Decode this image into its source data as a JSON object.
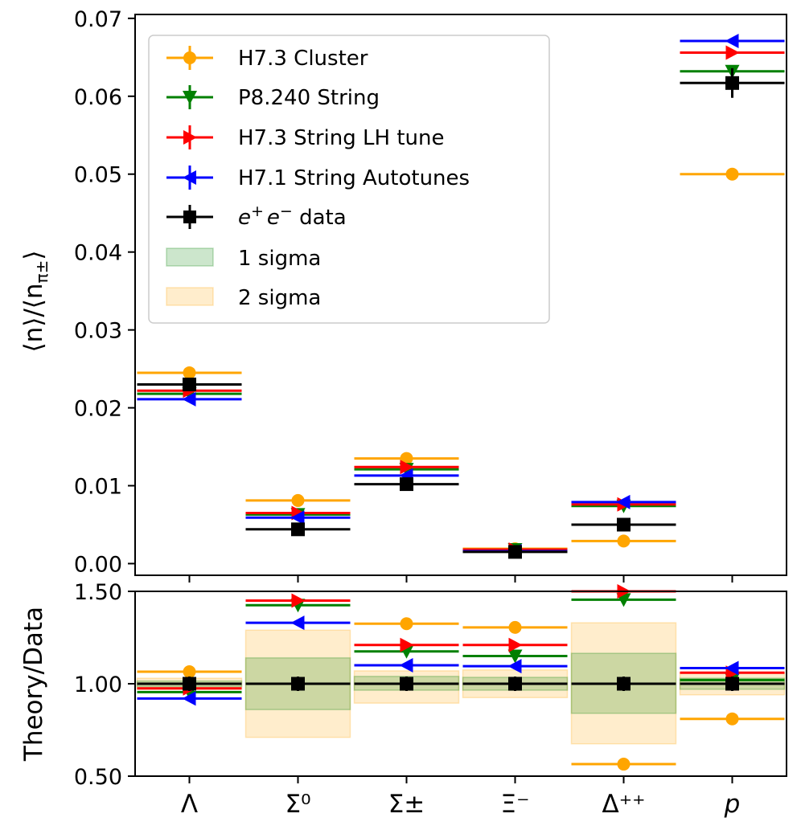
{
  "chart_data": [
    {
      "type": "scatter",
      "panel": "top",
      "title": "",
      "xlabel": "",
      "ylabel_main": "⟨n⟩/⟨n",
      "ylabel_sub": "π±",
      "ylabel_close": "⟩",
      "categories": [
        "Λ",
        "Σ⁰",
        "Σ±",
        "Ξ⁻",
        "Δ⁺⁺",
        "p"
      ],
      "ylim": [
        -0.0015,
        0.0705
      ],
      "yticks": [
        0.0,
        0.01,
        0.02,
        0.03,
        0.04,
        0.05,
        0.06,
        0.07
      ],
      "ytick_labels": [
        "0.00",
        "0.01",
        "0.02",
        "0.03",
        "0.04",
        "0.05",
        "0.06",
        "0.07"
      ],
      "legend_position": "top-left",
      "series": [
        {
          "name": "H7.3 Cluster",
          "color": "#FFA500",
          "marker": "circle",
          "values": [
            0.0245,
            0.0081,
            0.0135,
            0.0019,
            0.0029,
            0.05
          ]
        },
        {
          "name": "P8.240 String",
          "color": "#008000",
          "marker": "triangle-down",
          "values": [
            0.0218,
            0.0063,
            0.0121,
            0.0018,
            0.0074,
            0.0632
          ]
        },
        {
          "name": "H7.3 String LH tune",
          "color": "#FF0000",
          "marker": "triangle-right",
          "values": [
            0.0222,
            0.0065,
            0.0124,
            0.0018,
            0.0076,
            0.0656
          ]
        },
        {
          "name": "H7.1 String Autotunes",
          "color": "#0000FF",
          "marker": "triangle-left",
          "values": [
            0.0211,
            0.0059,
            0.0113,
            0.0016,
            0.0079,
            0.0671
          ]
        },
        {
          "name": "e⁺e⁻ data",
          "color": "#000000",
          "marker": "square",
          "values": [
            0.023,
            0.0044,
            0.0102,
            0.0015,
            0.005,
            0.0617
          ],
          "errors": [
            0.0008,
            0.0005,
            0.0004,
            0.0001,
            0.0004,
            0.0019
          ]
        }
      ],
      "bands": [
        {
          "name": "1 sigma",
          "color": "#008000",
          "alpha": 0.2
        },
        {
          "name": "2 sigma",
          "color": "#FFA500",
          "alpha": 0.2
        }
      ]
    },
    {
      "type": "scatter",
      "panel": "bottom",
      "ylabel": "Theory/Data",
      "categories": [
        "Λ",
        "Σ⁰",
        "Σ±",
        "Ξ⁻",
        "Δ⁺⁺",
        "p"
      ],
      "ylim": [
        0.5,
        1.5
      ],
      "yticks": [
        0.5,
        1.0,
        1.5
      ],
      "ytick_labels": [
        "0.50",
        "1.00",
        "1.50"
      ],
      "series": [
        {
          "name": "H7.3 Cluster",
          "values": [
            1.065,
            null,
            1.325,
            1.305,
            0.565,
            0.81
          ]
        },
        {
          "name": "P8.240 String",
          "values": [
            0.955,
            1.425,
            1.175,
            1.15,
            1.455,
            1.02
          ]
        },
        {
          "name": "H7.3 String LH tune",
          "values": [
            0.975,
            1.45,
            1.21,
            1.21,
            1.5,
            1.06
          ]
        },
        {
          "name": "H7.1 String Autotunes",
          "values": [
            0.92,
            1.33,
            1.1,
            1.095,
            null,
            1.085
          ]
        },
        {
          "name": "e⁺e⁻ data",
          "values": [
            1.0,
            1.0,
            1.0,
            1.0,
            1.0,
            1.0
          ]
        }
      ],
      "band_1sigma": [
        [
          0.985,
          1.015
        ],
        [
          0.86,
          1.14
        ],
        [
          0.965,
          1.04
        ],
        [
          0.965,
          1.035
        ],
        [
          0.84,
          1.165
        ],
        [
          0.97,
          1.03
        ]
      ],
      "band_2sigma": [
        [
          0.97,
          1.03
        ],
        [
          0.71,
          1.29
        ],
        [
          0.895,
          1.07
        ],
        [
          0.925,
          1.075
        ],
        [
          0.675,
          1.33
        ],
        [
          0.94,
          1.06
        ]
      ]
    }
  ],
  "legend": {
    "entries": [
      {
        "key": "cluster",
        "label": "H7.3 Cluster"
      },
      {
        "key": "p8",
        "label": "P8.240 String"
      },
      {
        "key": "lh",
        "label": "H7.3 String LH tune"
      },
      {
        "key": "auto",
        "label": "H7.1 String Autotunes"
      },
      {
        "key": "data",
        "label_pre": "e",
        "label_sup1": "+",
        "label_mid": "e",
        "label_sup2": "−",
        "label_post": " data"
      },
      {
        "key": "s1",
        "label": "1 sigma"
      },
      {
        "key": "s2",
        "label": "2 sigma"
      }
    ]
  }
}
